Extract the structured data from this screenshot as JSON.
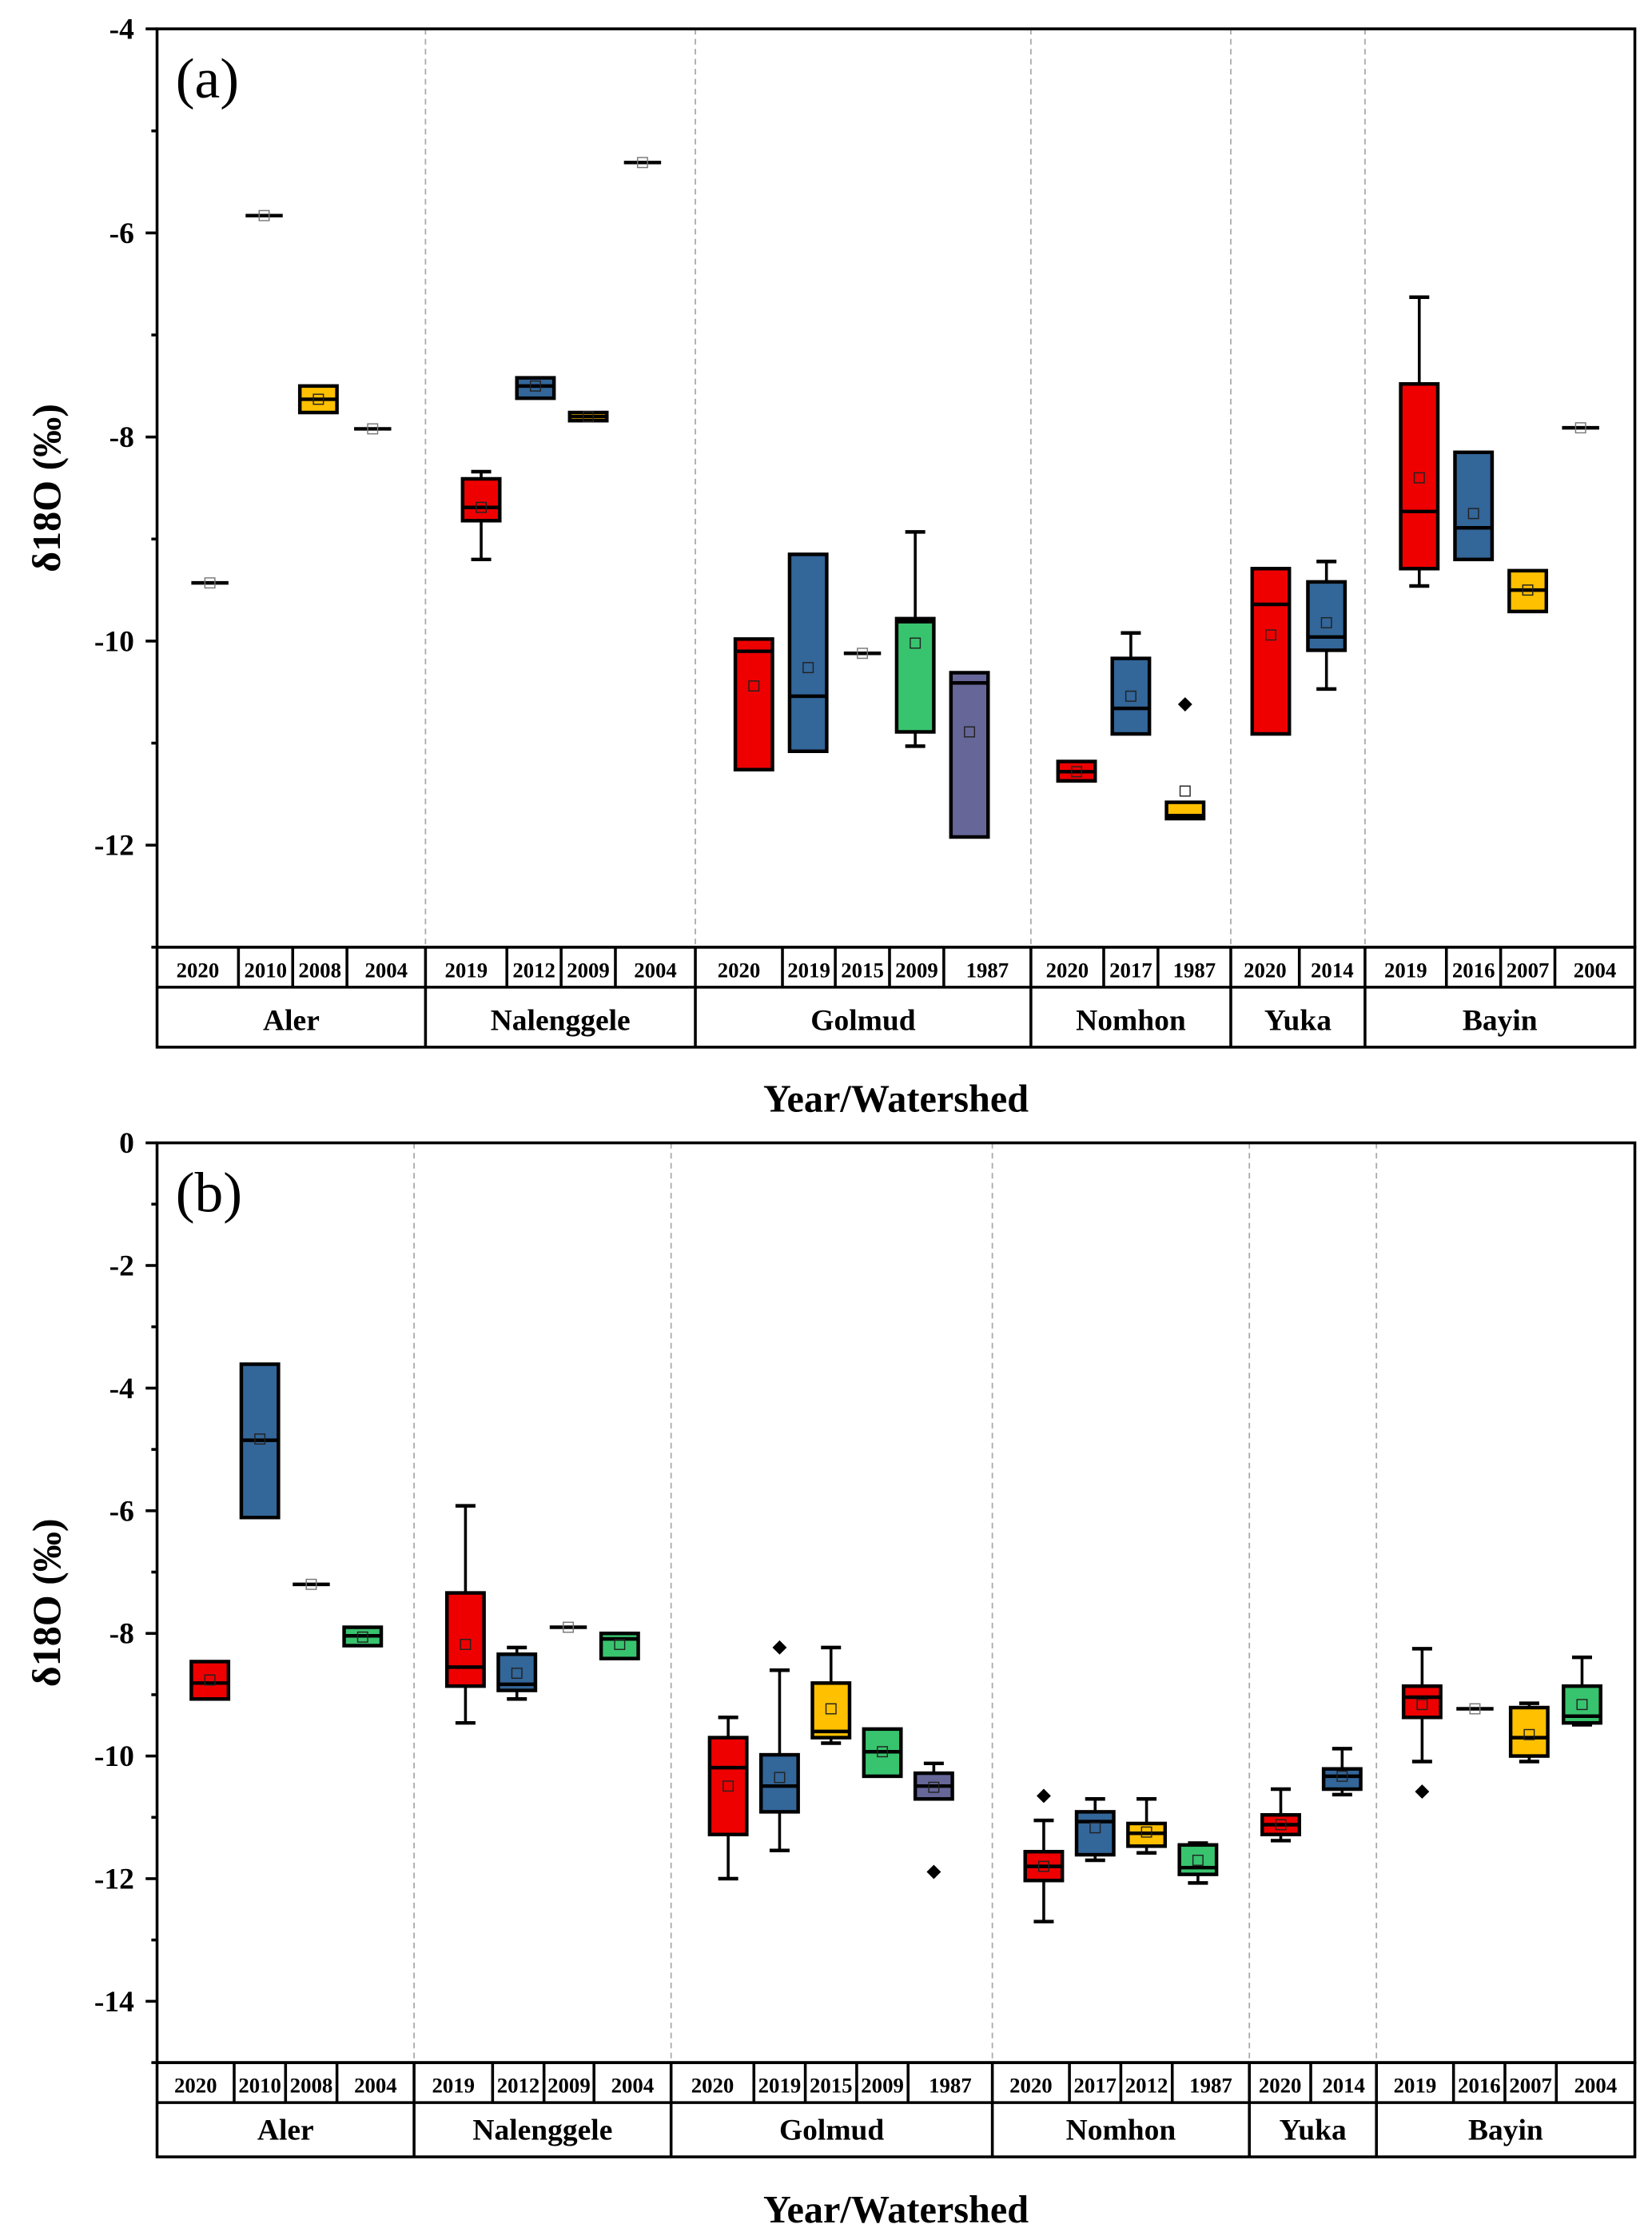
{
  "chart_data": [
    {
      "type": "box",
      "panel_label": "(a)",
      "ylabel": "δ18O (‰)",
      "xlabel": "Year/Watershed",
      "ylim": [
        -13,
        -4
      ],
      "yticks": [
        -4,
        -6,
        -8,
        -10,
        -12
      ],
      "colors": {
        "red": "#ee0000",
        "blue": "#336699",
        "yellow": "#ffc000",
        "green": "#38c46e",
        "purple": "#666699"
      },
      "groups": [
        {
          "name": "Aler",
          "boxes": [
            {
              "year": "2020",
              "color": "#ee0000",
              "min": -9.43,
              "q1": -9.43,
              "median": -9.43,
              "q3": -9.43,
              "max": -9.43,
              "mean": -9.43,
              "outliers": []
            },
            {
              "year": "2010",
              "color": "#336699",
              "min": -5.83,
              "q1": -5.83,
              "median": -5.83,
              "q3": -5.83,
              "max": -5.83,
              "mean": -5.83,
              "outliers": []
            },
            {
              "year": "2008",
              "color": "#ffc000",
              "min": -7.76,
              "q1": -7.76,
              "median": -7.63,
              "q3": -7.5,
              "max": -7.5,
              "mean": -7.63,
              "outliers": []
            },
            {
              "year": "2004",
              "color": "#38c46e",
              "min": -7.92,
              "q1": -7.92,
              "median": -7.92,
              "q3": -7.92,
              "max": -7.92,
              "mean": -7.92,
              "outliers": []
            }
          ]
        },
        {
          "name": "Nalenggele",
          "boxes": [
            {
              "year": "2019",
              "color": "#ee0000",
              "min": -9.2,
              "q1": -8.82,
              "median": -8.69,
              "q3": -8.41,
              "max": -8.34,
              "mean": -8.69,
              "outliers": []
            },
            {
              "year": "2012",
              "color": "#336699",
              "min": -7.62,
              "q1": -7.62,
              "median": -7.5,
              "q3": -7.42,
              "max": -7.42,
              "mean": -7.5,
              "outliers": []
            },
            {
              "year": "2009",
              "color": "#ffc000",
              "min": -7.84,
              "q1": -7.84,
              "median": -7.8,
              "q3": -7.76,
              "max": -7.76,
              "mean": -7.8,
              "outliers": []
            },
            {
              "year": "2004",
              "color": "#38c46e",
              "min": -5.31,
              "q1": -5.31,
              "median": -5.31,
              "q3": -5.31,
              "max": -5.31,
              "mean": -5.31,
              "outliers": []
            }
          ]
        },
        {
          "name": "Golmud",
          "boxes": [
            {
              "year": "2020",
              "color": "#ee0000",
              "min": -11.26,
              "q1": -11.26,
              "median": -10.1,
              "q3": -9.98,
              "max": -9.98,
              "mean": -10.44,
              "outliers": []
            },
            {
              "year": "2019",
              "color": "#336699",
              "min": -11.08,
              "q1": -11.08,
              "median": -10.54,
              "q3": -9.15,
              "max": -9.15,
              "mean": -10.26,
              "outliers": []
            },
            {
              "year": "2015",
              "color": "#ffc000",
              "min": -10.12,
              "q1": -10.12,
              "median": -10.12,
              "q3": -10.12,
              "max": -10.12,
              "mean": -10.12,
              "outliers": []
            },
            {
              "year": "2009",
              "color": "#38c46e",
              "min": -11.03,
              "q1": -10.89,
              "median": -9.81,
              "q3": -9.78,
              "max": -8.93,
              "mean": -10.02,
              "outliers": []
            },
            {
              "year": "1987",
              "color": "#666699",
              "min": -11.92,
              "q1": -11.92,
              "median": -10.41,
              "q3": -10.31,
              "max": -10.31,
              "mean": -10.89,
              "outliers": []
            }
          ]
        },
        {
          "name": "Nomhon",
          "boxes": [
            {
              "year": "2020",
              "color": "#ee0000",
              "min": -11.37,
              "q1": -11.37,
              "median": -11.28,
              "q3": -11.18,
              "max": -11.18,
              "mean": -11.28,
              "outliers": []
            },
            {
              "year": "2017",
              "color": "#336699",
              "min": -10.91,
              "q1": -10.91,
              "median": -10.66,
              "q3": -10.17,
              "max": -9.92,
              "mean": -10.54,
              "outliers": []
            },
            {
              "year": "1987",
              "color": "#ffc000",
              "min": -11.74,
              "q1": -11.74,
              "median": -11.71,
              "q3": -11.58,
              "max": -11.58,
              "mean": -11.47,
              "outliers": [
                -10.62
              ]
            }
          ]
        },
        {
          "name": "Yuka",
          "boxes": [
            {
              "year": "2020",
              "color": "#ee0000",
              "min": -10.91,
              "q1": -10.91,
              "median": -9.64,
              "q3": -9.29,
              "max": -9.29,
              "mean": -9.94,
              "outliers": []
            },
            {
              "year": "2014",
              "color": "#336699",
              "min": -10.47,
              "q1": -10.09,
              "median": -9.96,
              "q3": -9.42,
              "max": -9.22,
              "mean": -9.82,
              "outliers": []
            }
          ]
        },
        {
          "name": "Bayin",
          "boxes": [
            {
              "year": "2019",
              "color": "#ee0000",
              "min": -9.46,
              "q1": -9.29,
              "median": -8.73,
              "q3": -7.48,
              "max": -6.63,
              "mean": -8.4,
              "outliers": []
            },
            {
              "year": "2016",
              "color": "#336699",
              "min": -9.2,
              "q1": -9.2,
              "median": -8.89,
              "q3": -8.15,
              "max": -8.15,
              "mean": -8.75,
              "outliers": []
            },
            {
              "year": "2007",
              "color": "#ffc000",
              "min": -9.71,
              "q1": -9.71,
              "median": -9.5,
              "q3": -9.31,
              "max": -9.31,
              "mean": -9.5,
              "outliers": []
            },
            {
              "year": "2004",
              "color": "#38c46e",
              "min": -7.91,
              "q1": -7.91,
              "median": -7.91,
              "q3": -7.91,
              "max": -7.91,
              "mean": -7.91,
              "outliers": []
            }
          ]
        }
      ]
    },
    {
      "type": "box",
      "panel_label": "(b)",
      "ylabel": "δ18O (‰)",
      "xlabel": "Year/Watershed",
      "ylim": [
        -15,
        0
      ],
      "yticks": [
        0,
        -2,
        -4,
        -6,
        -8,
        -10,
        -12,
        -14
      ],
      "groups": [
        {
          "name": "Aler",
          "boxes": [
            {
              "year": "2020",
              "color": "#ee0000",
              "min": -9.07,
              "q1": -9.07,
              "median": -8.81,
              "q3": -8.46,
              "max": -8.46,
              "mean": -8.76,
              "outliers": []
            },
            {
              "year": "2010",
              "color": "#336699",
              "min": -6.11,
              "q1": -6.11,
              "median": -4.85,
              "q3": -3.61,
              "max": -3.61,
              "mean": -4.83,
              "outliers": []
            },
            {
              "year": "2008",
              "color": "#ffc000",
              "min": -7.2,
              "q1": -7.2,
              "median": -7.2,
              "q3": -7.2,
              "max": -7.2,
              "mean": -7.2,
              "outliers": []
            },
            {
              "year": "2004",
              "color": "#38c46e",
              "min": -8.2,
              "q1": -8.2,
              "median": -8.04,
              "q3": -7.9,
              "max": -7.9,
              "mean": -8.06,
              "outliers": []
            }
          ]
        },
        {
          "name": "Nalenggele",
          "boxes": [
            {
              "year": "2019",
              "color": "#ee0000",
              "min": -9.46,
              "q1": -8.86,
              "median": -8.55,
              "q3": -7.34,
              "max": -5.92,
              "mean": -8.18,
              "outliers": []
            },
            {
              "year": "2012",
              "color": "#336699",
              "min": -9.07,
              "q1": -8.93,
              "median": -8.83,
              "q3": -8.34,
              "max": -8.23,
              "mean": -8.65,
              "outliers": []
            },
            {
              "year": "2009",
              "color": "#ffc000",
              "min": -7.9,
              "q1": -7.9,
              "median": -7.9,
              "q3": -7.9,
              "max": -7.9,
              "mean": -7.9,
              "outliers": []
            },
            {
              "year": "2004",
              "color": "#38c46e",
              "min": -8.41,
              "q1": -8.41,
              "median": -8.09,
              "q3": -8.0,
              "max": -8.0,
              "mean": -8.18,
              "outliers": []
            }
          ]
        },
        {
          "name": "Golmud",
          "boxes": [
            {
              "year": "2020",
              "color": "#ee0000",
              "min": -12.0,
              "q1": -11.28,
              "median": -10.19,
              "q3": -9.7,
              "max": -9.37,
              "mean": -10.49,
              "outliers": []
            },
            {
              "year": "2019",
              "color": "#336699",
              "min": -11.54,
              "q1": -10.91,
              "median": -10.49,
              "q3": -9.98,
              "max": -8.6,
              "mean": -10.35,
              "outliers": [
                -8.23
              ]
            },
            {
              "year": "2015",
              "color": "#ffc000",
              "min": -9.79,
              "q1": -9.7,
              "median": -9.6,
              "q3": -8.81,
              "max": -8.23,
              "mean": -9.23,
              "outliers": []
            },
            {
              "year": "2009",
              "color": "#38c46e",
              "min": -10.33,
              "q1": -10.33,
              "median": -9.93,
              "q3": -9.56,
              "max": -9.56,
              "mean": -9.93,
              "outliers": []
            },
            {
              "year": "1987",
              "color": "#666699",
              "min": -10.7,
              "q1": -10.7,
              "median": -10.49,
              "q3": -10.28,
              "max": -10.12,
              "mean": -10.51,
              "outliers": [
                -11.89
              ]
            }
          ]
        },
        {
          "name": "Nomhon",
          "boxes": [
            {
              "year": "2020",
              "color": "#ee0000",
              "min": -12.7,
              "q1": -12.03,
              "median": -11.8,
              "q3": -11.56,
              "max": -11.05,
              "mean": -11.8,
              "outliers": [
                -10.65
              ]
            },
            {
              "year": "2017",
              "color": "#336699",
              "min": -11.7,
              "q1": -11.61,
              "median": -11.07,
              "q3": -10.91,
              "max": -10.7,
              "mean": -11.17,
              "outliers": []
            },
            {
              "year": "2012",
              "color": "#ffc000",
              "min": -11.58,
              "q1": -11.47,
              "median": -11.26,
              "q3": -11.1,
              "max": -10.7,
              "mean": -11.24,
              "outliers": []
            },
            {
              "year": "1987",
              "color": "#38c46e",
              "min": -12.07,
              "q1": -11.93,
              "median": -11.82,
              "q3": -11.45,
              "max": -11.42,
              "mean": -11.7,
              "outliers": []
            }
          ]
        },
        {
          "name": "Yuka",
          "boxes": [
            {
              "year": "2020",
              "color": "#ee0000",
              "min": -11.38,
              "q1": -11.28,
              "median": -11.12,
              "q3": -10.96,
              "max": -10.54,
              "mean": -11.12,
              "outliers": []
            },
            {
              "year": "2014",
              "color": "#336699",
              "min": -10.63,
              "q1": -10.54,
              "median": -10.33,
              "q3": -10.21,
              "max": -9.88,
              "mean": -10.33,
              "outliers": []
            }
          ]
        },
        {
          "name": "Bayin",
          "boxes": [
            {
              "year": "2019",
              "color": "#ee0000",
              "min": -10.09,
              "q1": -9.37,
              "median": -9.04,
              "q3": -8.86,
              "max": -8.25,
              "mean": -9.16,
              "outliers": [
                -10.58
              ]
            },
            {
              "year": "2016",
              "color": "#336699",
              "min": -9.23,
              "q1": -9.23,
              "median": -9.23,
              "q3": -9.23,
              "max": -9.23,
              "mean": -9.23,
              "outliers": []
            },
            {
              "year": "2007",
              "color": "#ffc000",
              "min": -10.09,
              "q1": -10.0,
              "median": -9.7,
              "q3": -9.21,
              "max": -9.14,
              "mean": -9.65,
              "outliers": []
            },
            {
              "year": "2004",
              "color": "#38c46e",
              "min": -9.49,
              "q1": -9.46,
              "median": -9.35,
              "q3": -8.86,
              "max": -8.39,
              "mean": -9.16,
              "outliers": []
            }
          ]
        }
      ]
    }
  ]
}
